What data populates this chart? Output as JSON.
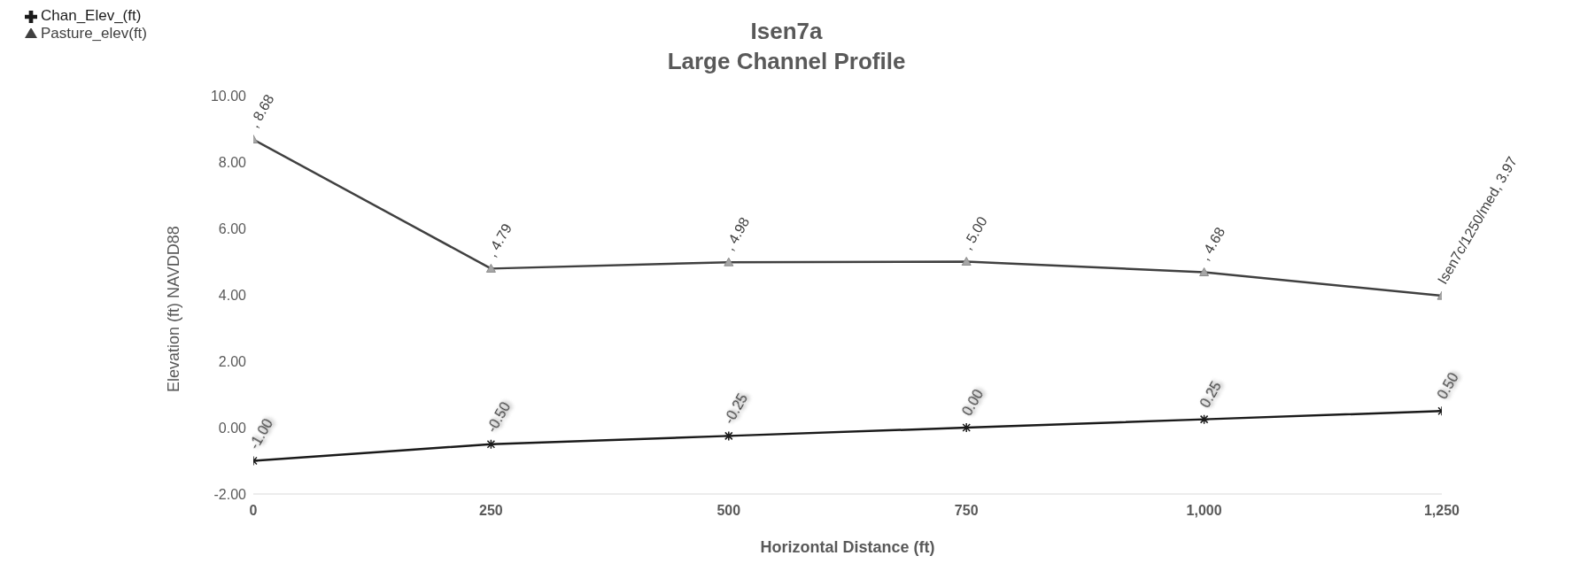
{
  "chart_data": {
    "type": "line",
    "title": "Isen7a",
    "subtitle": "Large Channel Profile",
    "xlabel": "Horizontal Distance (ft)",
    "ylabel": "Elevation (ft) NAVDD88",
    "x": [
      0,
      250,
      500,
      750,
      1000,
      1250
    ],
    "series": [
      {
        "name": "Chan_Elev_(ft)",
        "color": "#1a1a1a",
        "marker": "cross",
        "values": [
          -1.0,
          -0.5,
          -0.25,
          0.0,
          0.25,
          0.5
        ],
        "value_labels": [
          "-1.00",
          "-0.50",
          "-0.25",
          "0.00",
          "0.25",
          "0.50"
        ]
      },
      {
        "name": "Pasture_elev(ft)",
        "color": "#404040",
        "marker": "triangle",
        "values": [
          8.68,
          4.79,
          4.98,
          5.0,
          4.68,
          3.97
        ],
        "value_labels": [
          ", 8.68",
          ", 4.79",
          ", 4.98",
          ", 5.00",
          ", 4.68",
          "Isen7c/1250/med, 3.97"
        ]
      }
    ],
    "xlim": [
      0,
      1250
    ],
    "xticks": [
      0,
      250,
      500,
      750,
      {
        "value": 1000,
        "label": "1,000"
      },
      {
        "value": 1250,
        "label": "1,250"
      }
    ],
    "ylim": [
      -2,
      10
    ],
    "yticks": [
      {
        "value": -2,
        "label": "-2.00"
      },
      {
        "value": 0,
        "label": "0.00"
      },
      {
        "value": 2,
        "label": "2.00"
      },
      {
        "value": 4,
        "label": "4.00"
      },
      {
        "value": 6,
        "label": "6.00"
      },
      {
        "value": 8,
        "label": "8.00"
      },
      {
        "value": 10,
        "label": "10.00"
      }
    ],
    "grid": false,
    "legend": "top left",
    "line_style": "solid"
  }
}
